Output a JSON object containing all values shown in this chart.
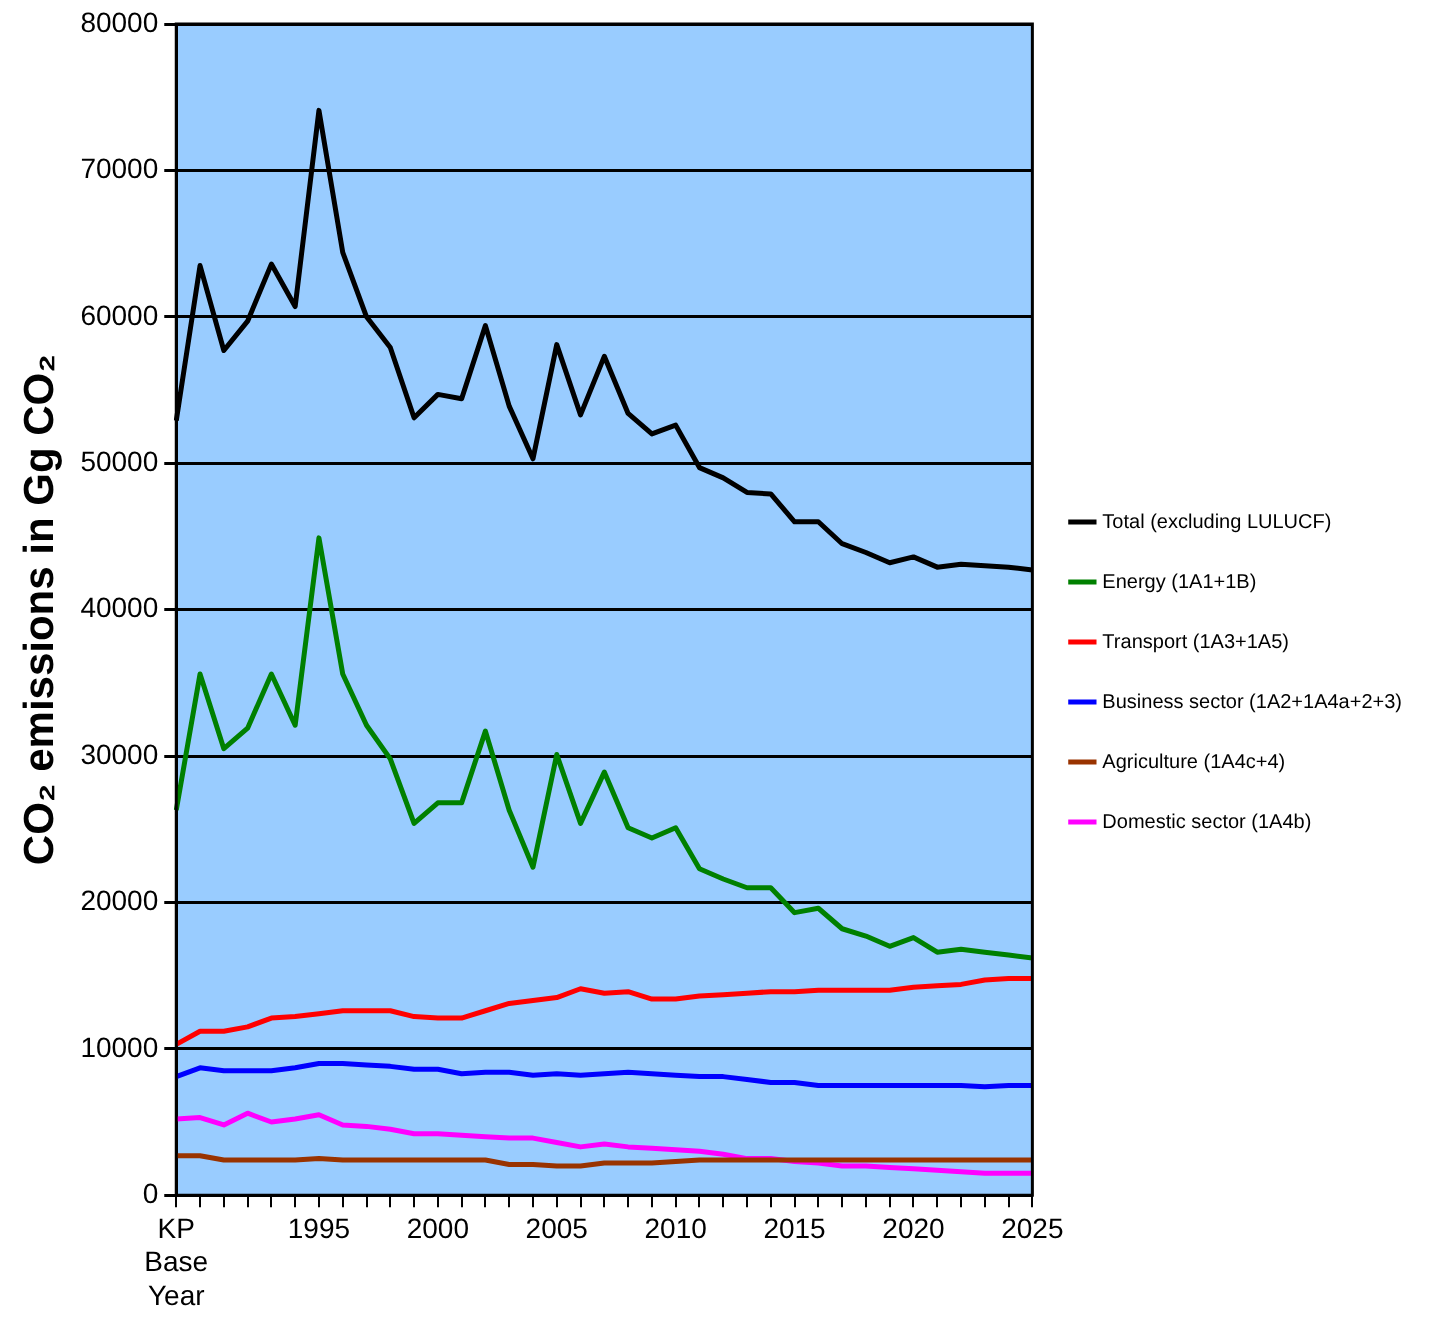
{
  "chart_data": {
    "type": "line",
    "ylabel": "CO₂ emissions in Gg CO₂",
    "categories": [
      "KP Base Year",
      null,
      null,
      null,
      null,
      null,
      "1995",
      null,
      null,
      null,
      null,
      "2000",
      null,
      null,
      null,
      null,
      "2005",
      null,
      null,
      null,
      null,
      "2010",
      null,
      null,
      null,
      null,
      "2015",
      null,
      null,
      null,
      null,
      "2020",
      null,
      null,
      null,
      null,
      "2025"
    ],
    "series": [
      {
        "name": "Total (excluding LULUCF)",
        "color": "#000000",
        "values": [
          52900,
          63500,
          57700,
          59700,
          63600,
          60700,
          74100,
          64400,
          60000,
          57900,
          53100,
          54700,
          54400,
          59400,
          53900,
          50300,
          58100,
          53300,
          57300,
          53400,
          52000,
          52600,
          49700,
          49000,
          48000,
          47900,
          46000,
          46000,
          44500,
          43900,
          43200,
          43600,
          42900,
          43100,
          43000,
          42900,
          42700
        ]
      },
      {
        "name": "Energy (1A1+1B)",
        "color": "#008000",
        "values": [
          26300,
          35600,
          30500,
          31900,
          35600,
          32100,
          44900,
          35600,
          32100,
          29800,
          25400,
          26800,
          26800,
          31700,
          26300,
          22400,
          30100,
          25400,
          28900,
          25100,
          24400,
          25100,
          22300,
          21600,
          21000,
          21000,
          19300,
          19600,
          18200,
          17700,
          17000,
          17600,
          16600,
          16800,
          16600,
          16400,
          16200
        ]
      },
      {
        "name": "Transport (1A3+1A5)",
        "color": "#ff0000",
        "values": [
          10300,
          11200,
          11200,
          11500,
          12100,
          12200,
          12400,
          12600,
          12600,
          12600,
          12200,
          12100,
          12100,
          12600,
          13100,
          13300,
          13500,
          14100,
          13800,
          13900,
          13400,
          13400,
          13600,
          13700,
          13800,
          13900,
          13900,
          14000,
          14000,
          14000,
          14000,
          14200,
          14300,
          14400,
          14700,
          14800,
          14800
        ]
      },
      {
        "name": "Business sector (1A2+1A4a+2+3)",
        "color": "#0000ff",
        "values": [
          8100,
          8700,
          8500,
          8500,
          8500,
          8700,
          9000,
          9000,
          8900,
          8800,
          8600,
          8600,
          8300,
          8400,
          8400,
          8200,
          8300,
          8200,
          8300,
          8400,
          8300,
          8200,
          8100,
          8100,
          7900,
          7700,
          7700,
          7500,
          7500,
          7500,
          7500,
          7500,
          7500,
          7500,
          7400,
          7500,
          7500
        ]
      },
      {
        "name": "Agriculture (1A4c+4)",
        "color": "#993300",
        "values": [
          2700,
          2700,
          2400,
          2400,
          2400,
          2400,
          2500,
          2400,
          2400,
          2400,
          2400,
          2400,
          2400,
          2400,
          2100,
          2100,
          2000,
          2000,
          2200,
          2200,
          2200,
          2300,
          2400,
          2400,
          2400,
          2400,
          2400,
          2400,
          2400,
          2400,
          2400,
          2400,
          2400,
          2400,
          2400,
          2400,
          2400
        ]
      },
      {
        "name": "Domestic sector (1A4b)",
        "color": "#ff00ff",
        "values": [
          5200,
          5300,
          4800,
          5600,
          5000,
          5200,
          5500,
          4800,
          4700,
          4500,
          4200,
          4200,
          4100,
          4000,
          3900,
          3900,
          3600,
          3300,
          3500,
          3300,
          3200,
          3100,
          3000,
          2800,
          2500,
          2500,
          2300,
          2200,
          2000,
          2000,
          1900,
          1800,
          1700,
          1600,
          1500,
          1500,
          1500
        ]
      }
    ],
    "ylim": [
      0,
      80000
    ],
    "yticks": [
      0,
      10000,
      20000,
      30000,
      40000,
      50000,
      60000,
      70000,
      80000
    ],
    "grid": "y",
    "legend": "right",
    "marker": "none",
    "line_style": "solid"
  }
}
